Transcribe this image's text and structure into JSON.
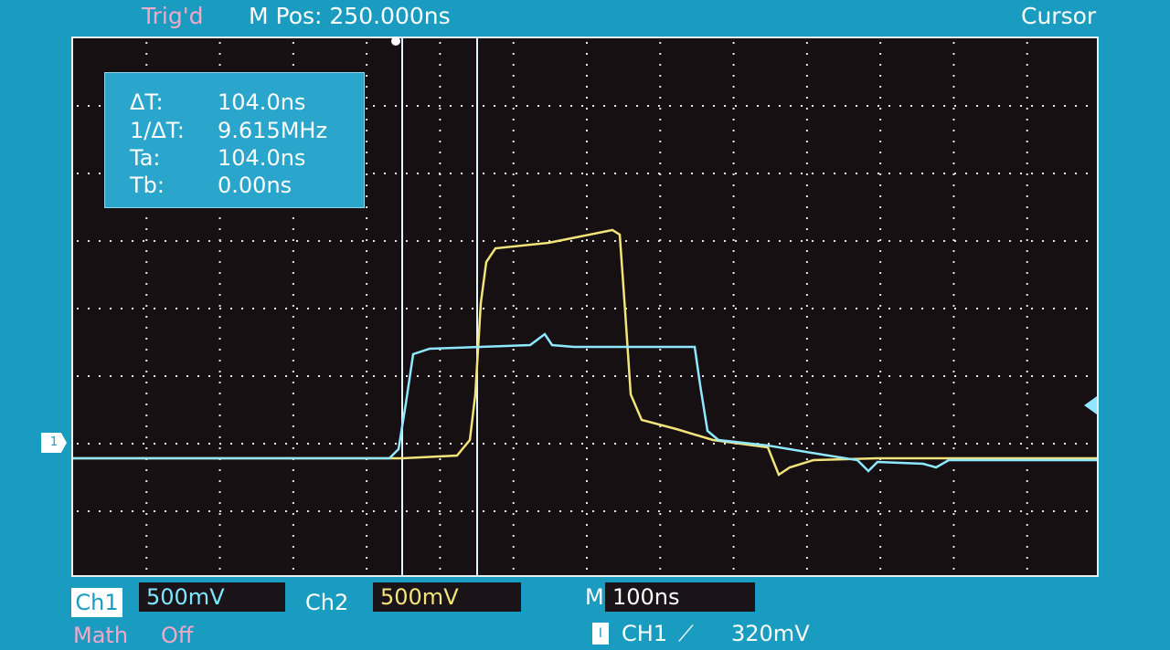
{
  "header": {
    "trigger_status": "Trig'd",
    "m_pos": "M Pos: 250.000ns",
    "menu": "Cursor"
  },
  "cursor_readout": {
    "rows": [
      {
        "label": "ΔT:",
        "value": "104.0ns"
      },
      {
        "label": "1/ΔT:",
        "value": "9.615MHz"
      },
      {
        "label": "Ta:",
        "value": "104.0ns"
      },
      {
        "label": "Tb:",
        "value": "0.00ns"
      }
    ]
  },
  "channel_marker": "1",
  "trigger_marker_icon": "trigger-level-arrow",
  "footer": {
    "ch1_label": "Ch1",
    "ch1_scale": "500mV",
    "ch2_label": "Ch2",
    "ch2_scale": "500mV",
    "timebase_label": "M",
    "timebase_scale": "100ns",
    "math_label": "Math",
    "math_state": "Off",
    "trigger_icon": "I",
    "trigger_source": "CH1",
    "trigger_slope": "⟋",
    "trigger_level": "320mV"
  },
  "colors": {
    "ch1": "#8fe8ff",
    "ch2": "#f2e37a",
    "grid": "#e8e8e8",
    "screen_bg": "#161013"
  }
}
